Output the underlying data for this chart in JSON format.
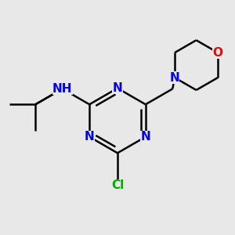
{
  "bg_color": "#e8e8e8",
  "atom_colors": {
    "N": "#0000ee",
    "O": "#ee0000",
    "C": "#000000",
    "Cl": "#00aa00",
    "H": "#4a9090",
    "bond": "#000000"
  },
  "figsize": [
    3.0,
    3.0
  ],
  "dpi": 100,
  "bond_width": 1.8,
  "font_size": 11,
  "font_size_h": 10
}
